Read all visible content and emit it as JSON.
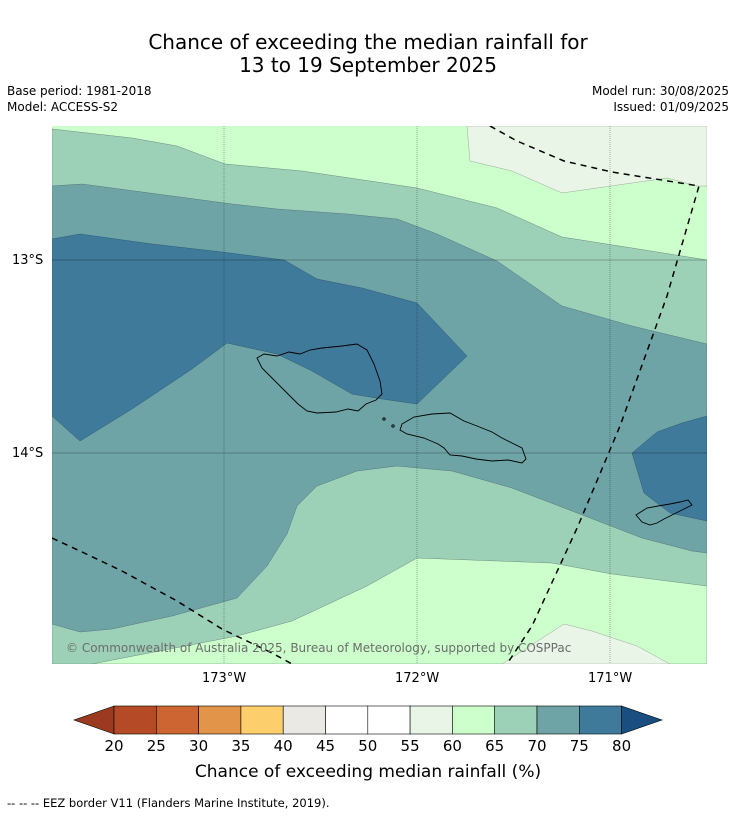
{
  "title_line1": "Chance of exceeding the median rainfall for",
  "title_line2": "13 to 19 September 2025",
  "base_period": "Base period: 1981-2018",
  "model": "Model: ACCESS-S2",
  "model_run": "Model run: 30/08/2025",
  "issued": "Issued: 01/09/2025",
  "copyright": "© Commonwealth of Australia 2025, Bureau of Meteorology, supported by COSPPac",
  "lat_ticks": [
    "13°S",
    "14°S"
  ],
  "lon_ticks": [
    "173°W",
    "172°W",
    "171°W"
  ],
  "colorbar": {
    "title": "Chance of exceeding median rainfall (%)",
    "ticks": [
      "20",
      "25",
      "30",
      "35",
      "40",
      "45",
      "50",
      "55",
      "60",
      "65",
      "70",
      "75",
      "80"
    ],
    "colors": [
      "#9b3a20",
      "#b44a26",
      "#cc6532",
      "#e29448",
      "#fdce6c",
      "#ebe9e4",
      "#ffffff",
      "#ffffff",
      "#e9f5e7",
      "#ccffcc",
      "#9cd1b8",
      "#6ea4a6",
      "#3f7a9a",
      "#1a4d80"
    ]
  },
  "footer": "-- -- -- EEZ border V11 (Flanders Marine Institute, 2019)."
}
